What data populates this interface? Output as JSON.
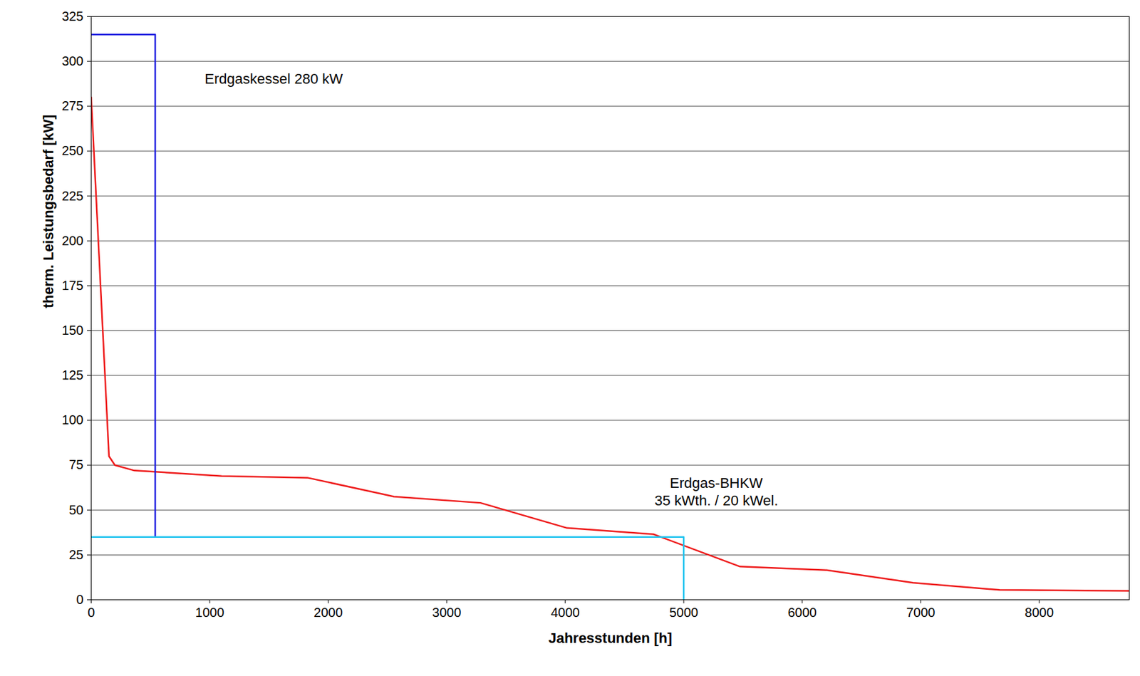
{
  "chart_data": {
    "type": "line",
    "x_label": "Jahresstunden [h]",
    "y_label": "therm. Leistungsbedarf [kW]",
    "xlim": [
      0,
      8760
    ],
    "xticks": [
      0,
      1000,
      2000,
      3000,
      4000,
      5000,
      6000,
      7000,
      8000
    ],
    "ylim": [
      0,
      325
    ],
    "yticks": [
      0,
      25,
      50,
      75,
      100,
      125,
      150,
      175,
      200,
      225,
      250,
      275,
      300,
      325
    ],
    "grid": true,
    "series": [
      {
        "color": "#ee1c1c",
        "x": [
          0,
          150,
          200,
          365,
          1100,
          1825,
          2555,
          3285,
          4015,
          4745,
          5475,
          6205,
          6935,
          7665,
          8760
        ],
        "values": [
          280,
          80,
          75,
          72,
          69,
          68,
          57.5,
          54,
          40,
          36.5,
          18.5,
          16.5,
          9.5,
          5.5,
          5
        ]
      },
      {
        "color": "#1f1fe0",
        "x": [
          0,
          540,
          540
        ],
        "values": [
          315,
          315,
          35
        ]
      },
      {
        "color": "#1ec3ef",
        "x": [
          0,
          5000,
          5000
        ],
        "values": [
          35,
          35,
          0
        ]
      }
    ],
    "annotations": [
      {
        "text": "Erdgaskessel 280 kW",
        "x": 1540,
        "y": 290
      },
      {
        "text": "Erdgas-BHKW",
        "x": 5275,
        "y": 65
      },
      {
        "text": "35 kWth. / 20 kWel.",
        "x": 5275,
        "y": 55
      }
    ]
  }
}
